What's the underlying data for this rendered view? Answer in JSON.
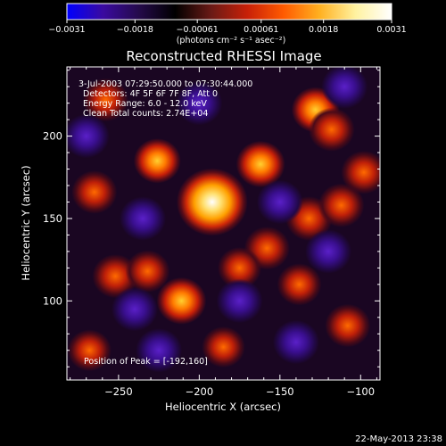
{
  "chart_data": {
    "type": "heatmap",
    "title": "Reconstructed RHESSI Image",
    "xlabel": "Heliocentric X (arcsec)",
    "ylabel": "Heliocentric Y (arcsec)",
    "xlim": [
      -282,
      -88
    ],
    "ylim": [
      52,
      242
    ],
    "x_ticks": [
      -250,
      -200,
      -150,
      -100
    ],
    "y_ticks": [
      100,
      150,
      200
    ],
    "x_tick_labels": [
      "−250",
      "−200",
      "−150",
      "−100"
    ],
    "y_tick_labels": [
      "100",
      "150",
      "200"
    ],
    "colorbar": {
      "tick_values": [
        -0.0031,
        -0.0018,
        -0.00061,
        0.00061,
        0.0018,
        0.0031
      ],
      "tick_labels": [
        "−0.0031",
        "−0.0018",
        "−0.00061",
        "0.00061",
        "0.0018",
        "0.0031"
      ],
      "units": "(photons cm⁻² s⁻¹ asec⁻²)",
      "colors": [
        "#0000ff",
        "#3a0aa0",
        "#240a4a",
        "#000000",
        "#6a1a16",
        "#c82008",
        "#ff5a00",
        "#ffb020",
        "#fff2a0",
        "#ffffff"
      ]
    },
    "annotations": [
      "3-Jul-2003 07:29:50.000 to 07:30:44.000",
      "Detectors: 4F 5F 6F 7F 8F, Att 0",
      "Energy Range: 6.0 - 12.0 keV",
      "Clean    Total counts: 2.74E+04"
    ],
    "peak_label": "Position of Peak = [-192,160]",
    "peak": [
      -192,
      160
    ],
    "sources": [
      {
        "x": -192,
        "y": 160,
        "value": 0.0031
      },
      {
        "x": -162,
        "y": 183,
        "value": 0.0017
      },
      {
        "x": -128,
        "y": 216,
        "value": 0.0015
      },
      {
        "x": -118,
        "y": 204,
        "value": 0.0012
      },
      {
        "x": -226,
        "y": 185,
        "value": 0.0014
      },
      {
        "x": -258,
        "y": 222,
        "value": 0.0011
      },
      {
        "x": -265,
        "y": 166,
        "value": 0.0011
      },
      {
        "x": -252,
        "y": 115,
        "value": 0.0012
      },
      {
        "x": -232,
        "y": 118,
        "value": 0.0009
      },
      {
        "x": -211,
        "y": 100,
        "value": 0.0018
      },
      {
        "x": -158,
        "y": 132,
        "value": 0.0011
      },
      {
        "x": -132,
        "y": 150,
        "value": 0.0013
      },
      {
        "x": -112,
        "y": 158,
        "value": 0.0012
      },
      {
        "x": -98,
        "y": 178,
        "value": 0.0011
      },
      {
        "x": -175,
        "y": 120,
        "value": 0.0008
      },
      {
        "x": -138,
        "y": 110,
        "value": 0.0009
      },
      {
        "x": -108,
        "y": 85,
        "value": 0.0011
      },
      {
        "x": -185,
        "y": 72,
        "value": 0.0007
      },
      {
        "x": -268,
        "y": 70,
        "value": 0.0008
      },
      {
        "x": -235,
        "y": 150,
        "value": -0.0012
      },
      {
        "x": -200,
        "y": 220,
        "value": -0.0011
      },
      {
        "x": -150,
        "y": 160,
        "value": -0.001
      },
      {
        "x": -175,
        "y": 100,
        "value": -0.0013
      },
      {
        "x": -120,
        "y": 130,
        "value": -0.0012
      },
      {
        "x": -240,
        "y": 95,
        "value": -0.0011
      },
      {
        "x": -110,
        "y": 230,
        "value": -0.0008
      },
      {
        "x": -140,
        "y": 75,
        "value": -0.0009
      },
      {
        "x": -270,
        "y": 200,
        "value": -0.0008
      },
      {
        "x": -225,
        "y": 70,
        "value": -0.001
      }
    ]
  },
  "footer": {
    "date": "22-May-2013 23:38"
  }
}
